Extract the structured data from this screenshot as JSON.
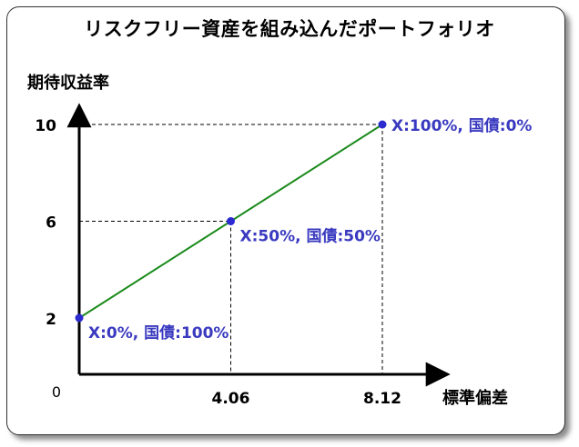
{
  "chart_data": {
    "type": "line",
    "title": "リスクフリー資産を組み込んだポートフォリオ",
    "xlabel": "標準偏差",
    "ylabel": "期待収益率",
    "origin_label": "0",
    "x_ticks": [
      "4.06",
      "8.12"
    ],
    "x_tick_values": [
      4.06,
      8.12
    ],
    "y_ticks": [
      "2",
      "6",
      "10"
    ],
    "y_tick_values": [
      2,
      6,
      10
    ],
    "xlim": [
      0,
      9.8
    ],
    "ylim": [
      0,
      13
    ],
    "series": [
      {
        "points": [
          {
            "x": 0,
            "y": 2,
            "label": "X:0%, 国債:100%"
          },
          {
            "x": 4.06,
            "y": 6,
            "label": "X:50%, 国債:50%"
          },
          {
            "x": 8.12,
            "y": 10,
            "label": "X:100%, 国債:0%"
          }
        ]
      }
    ],
    "colors": {
      "line": "#1a8a1a",
      "point": "#2b2bd0",
      "point_label": "#3a3ac0",
      "axis": "#000000",
      "guide": "#000000"
    },
    "grid": false,
    "guides": "dashed"
  }
}
